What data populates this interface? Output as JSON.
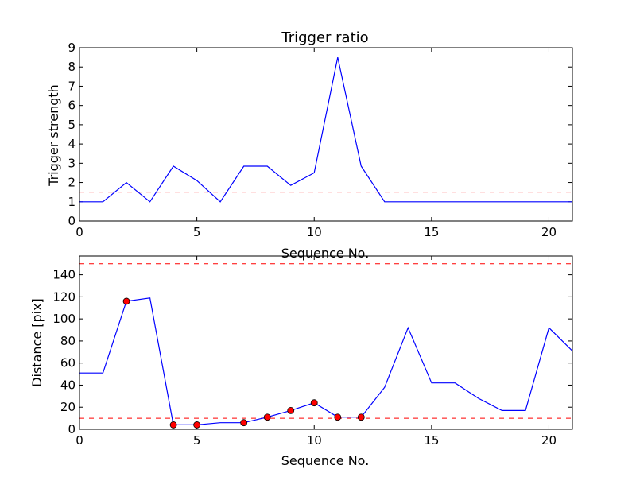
{
  "chart_data": [
    {
      "type": "line",
      "title": "Trigger ratio",
      "xlabel": "Sequence No.",
      "ylabel": "Trigger strength",
      "xlim": [
        0,
        21
      ],
      "ylim": [
        0,
        9
      ],
      "xticks": [
        0,
        5,
        10,
        15,
        20
      ],
      "yticks": [
        0,
        1,
        2,
        3,
        4,
        5,
        6,
        7,
        8,
        9
      ],
      "grid": false,
      "series": [
        {
          "color": "#0000ff",
          "x": [
            0,
            1,
            2,
            3,
            4,
            5,
            6,
            7,
            8,
            9,
            10,
            11,
            12,
            13,
            14,
            15,
            16,
            17,
            18,
            19,
            20,
            21
          ],
          "y": [
            1.0,
            1.0,
            2.0,
            1.0,
            2.85,
            2.1,
            1.0,
            2.85,
            2.85,
            1.85,
            2.5,
            8.5,
            2.85,
            1.0,
            1.0,
            1.0,
            1.0,
            1.0,
            1.0,
            1.0,
            1.0,
            1.0
          ]
        }
      ],
      "hlines": [
        {
          "y": 1.5,
          "color": "#ff0000",
          "style": "dashed"
        }
      ]
    },
    {
      "type": "line",
      "title": "",
      "xlabel": "Sequence No.",
      "ylabel": "Distance [pix]",
      "xlim": [
        0,
        21
      ],
      "ylim": [
        0,
        157
      ],
      "xticks": [
        0,
        5,
        10,
        15,
        20
      ],
      "yticks": [
        0,
        20,
        40,
        60,
        80,
        100,
        120,
        140
      ],
      "grid": false,
      "series": [
        {
          "color": "#0000ff",
          "x": [
            0,
            1,
            2,
            3,
            4,
            5,
            6,
            7,
            8,
            9,
            10,
            11,
            12,
            13,
            14,
            15,
            16,
            17,
            18,
            19,
            20,
            21
          ],
          "y": [
            51,
            51,
            116,
            119,
            4,
            4,
            6,
            6,
            11,
            17,
            24,
            11,
            11,
            38,
            92,
            42,
            42,
            28,
            17,
            17,
            92,
            71
          ]
        }
      ],
      "markers": {
        "color": "#ff0000",
        "x": [
          2,
          4,
          5,
          7,
          8,
          9,
          10,
          11,
          12
        ],
        "y": [
          116,
          4,
          4,
          6,
          11,
          17,
          24,
          11,
          11
        ]
      },
      "hlines": [
        {
          "y": 150,
          "color": "#ff0000",
          "style": "dashed"
        },
        {
          "y": 10,
          "color": "#ff0000",
          "style": "dashed"
        }
      ]
    }
  ]
}
